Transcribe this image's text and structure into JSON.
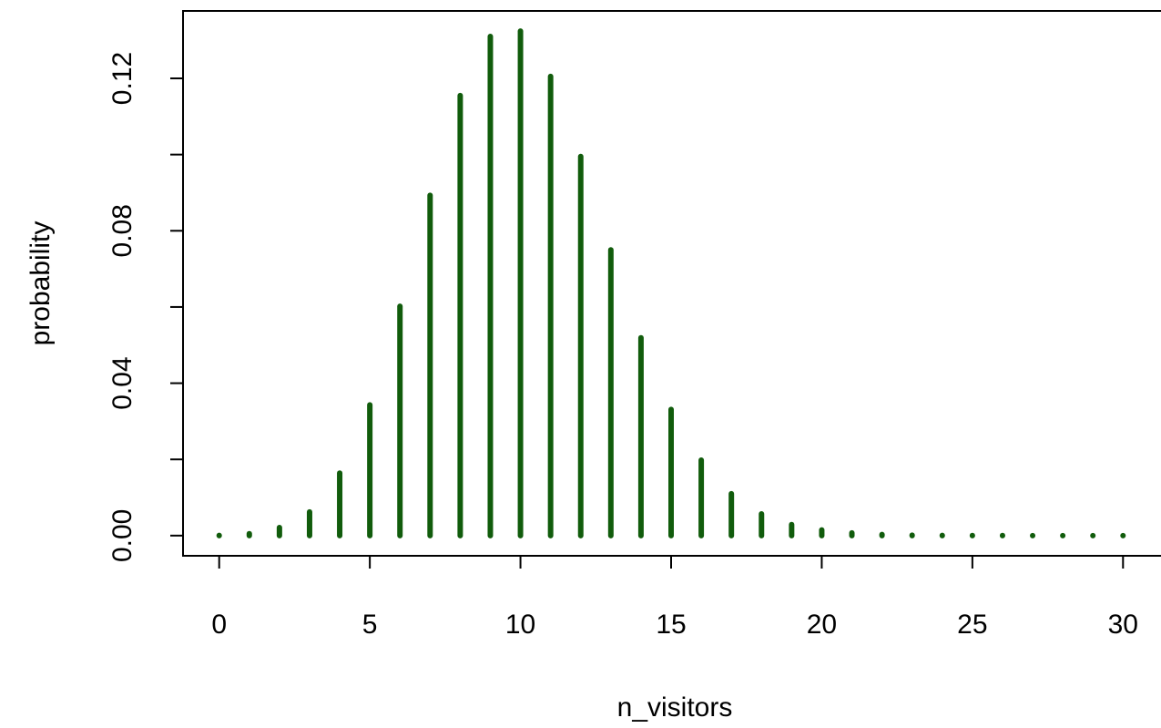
{
  "chart_data": {
    "type": "stem",
    "x_label": "n_visitors",
    "y_label": "probability",
    "x": [
      0,
      1,
      2,
      3,
      4,
      5,
      6,
      7,
      8,
      9,
      10,
      11,
      12,
      13,
      14,
      15,
      16,
      17,
      18,
      19,
      20,
      21,
      22,
      23,
      24,
      25,
      26,
      27,
      28,
      29,
      30
    ],
    "values": [
      5e-05,
      0.0005,
      0.0021,
      0.0062,
      0.0164,
      0.0343,
      0.0602,
      0.0893,
      0.1155,
      0.131,
      0.1324,
      0.1205,
      0.0995,
      0.075,
      0.0519,
      0.0331,
      0.0198,
      0.011,
      0.0057,
      0.0029,
      0.0015,
      0.0007,
      0.0003,
      0.0001,
      5e-05,
      2e-05,
      1e-05,
      0,
      0,
      0,
      0
    ],
    "color": "#115c0c",
    "xlim": [
      -1.2,
      31.2
    ],
    "ylim": [
      -0.0053,
      0.1377
    ],
    "xticks": [
      0,
      5,
      10,
      15,
      20,
      25,
      30
    ],
    "yticks": [
      {
        "value": 0,
        "label": "0.00"
      },
      {
        "value": 0.04,
        "label": "0.04"
      },
      {
        "value": 0.08,
        "label": "0.08"
      },
      {
        "value": 0.12,
        "label": "0.12"
      }
    ],
    "yminor_ticks": [
      0.02,
      0.06,
      0.1
    ]
  }
}
